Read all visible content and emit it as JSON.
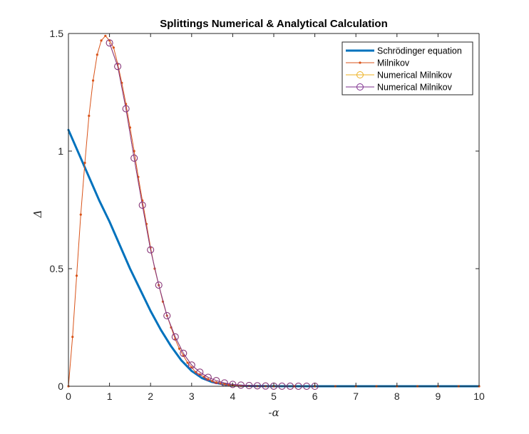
{
  "chart_data": {
    "type": "line",
    "title": "Splittings Numerical & Analytical Calculation",
    "xlabel": "-α",
    "ylabel": "Δ",
    "xlim": [
      0,
      10
    ],
    "ylim": [
      0,
      1.5
    ],
    "xticks": [
      0,
      1,
      2,
      3,
      4,
      5,
      6,
      7,
      8,
      9,
      10
    ],
    "yticks": [
      0,
      0.5,
      1,
      1.5
    ],
    "ytick_labels": [
      "0",
      "0.5",
      "1",
      "1.5"
    ],
    "grid": false,
    "legend_position": "top-right",
    "series": [
      {
        "name": "Schrödinger equation",
        "color": "#0072BD",
        "marker": "none",
        "x": [
          0,
          0.25,
          0.5,
          0.75,
          1,
          1.25,
          1.5,
          1.75,
          2,
          2.25,
          2.5,
          2.75,
          3,
          3.25,
          3.5,
          3.75,
          4,
          4.25,
          4.5,
          5,
          6,
          7,
          8,
          9,
          10
        ],
        "y": [
          1.09,
          0.99,
          0.89,
          0.79,
          0.7,
          0.6,
          0.5,
          0.41,
          0.32,
          0.24,
          0.17,
          0.11,
          0.065,
          0.035,
          0.018,
          0.009,
          0.004,
          0.002,
          0.001,
          0.0003,
          0,
          0,
          0,
          0,
          0
        ]
      },
      {
        "name": "Milnikov",
        "color": "#D95319",
        "marker": "dot",
        "x": [
          0,
          0.1,
          0.2,
          0.3,
          0.4,
          0.5,
          0.6,
          0.7,
          0.8,
          0.9,
          1.0,
          1.1,
          1.2,
          1.3,
          1.4,
          1.5,
          1.6,
          1.7,
          1.8,
          1.9,
          2.0,
          2.1,
          2.2,
          2.3,
          2.4,
          2.5,
          2.6,
          2.7,
          2.8,
          2.9,
          3.0,
          3.1,
          3.2,
          3.3,
          3.4,
          3.5,
          3.6,
          3.7,
          3.8,
          3.9,
          4.0,
          4.2,
          4.4,
          4.6,
          4.8,
          5.0,
          5.5,
          6.0,
          6.5,
          7.0,
          7.5,
          8.0,
          8.5,
          9.0,
          9.5,
          10.0
        ],
        "y": [
          0,
          0.21,
          0.47,
          0.73,
          0.95,
          1.15,
          1.3,
          1.41,
          1.47,
          1.49,
          1.47,
          1.44,
          1.37,
          1.29,
          1.2,
          1.1,
          1.0,
          0.89,
          0.79,
          0.69,
          0.59,
          0.5,
          0.43,
          0.36,
          0.3,
          0.25,
          0.2,
          0.16,
          0.13,
          0.1,
          0.08,
          0.06,
          0.05,
          0.04,
          0.03,
          0.022,
          0.016,
          0.012,
          0.009,
          0.006,
          0.004,
          0.002,
          0.001,
          0.0005,
          0.0002,
          0.0001,
          0,
          0,
          0,
          0,
          0,
          0,
          0,
          0,
          0,
          0
        ]
      },
      {
        "name": "Numerical Milnikov",
        "color": "#EDB120",
        "marker": "circle",
        "x": [
          1.0,
          1.2,
          1.4,
          1.6,
          1.8,
          2.0,
          2.2,
          2.4,
          2.6,
          2.8,
          3.0,
          3.2,
          3.4,
          3.6,
          3.8,
          4.0,
          4.2,
          4.4,
          4.6,
          4.8,
          5.0,
          5.2,
          5.4,
          5.6,
          5.8,
          6.0
        ],
        "y": [
          1.46,
          1.36,
          1.18,
          0.97,
          0.77,
          0.58,
          0.43,
          0.3,
          0.21,
          0.14,
          0.09,
          0.06,
          0.038,
          0.024,
          0.014,
          0.008,
          0.005,
          0.003,
          0.002,
          0.001,
          0.0005,
          0.0003,
          0.0002,
          0.0001,
          5e-05,
          0
        ]
      },
      {
        "name": "Numerical Milnikov",
        "color": "#7E2F8E",
        "marker": "circle",
        "x": [
          1.0,
          1.2,
          1.4,
          1.6,
          1.8,
          2.0,
          2.2,
          2.4,
          2.6,
          2.8,
          3.0,
          3.2,
          3.4,
          3.6,
          3.8,
          4.0,
          4.2,
          4.4,
          4.6,
          4.8,
          5.0,
          5.2,
          5.4,
          5.6,
          5.8,
          6.0
        ],
        "y": [
          1.46,
          1.36,
          1.18,
          0.97,
          0.77,
          0.58,
          0.43,
          0.3,
          0.21,
          0.14,
          0.09,
          0.06,
          0.038,
          0.024,
          0.014,
          0.008,
          0.005,
          0.003,
          0.002,
          0.001,
          0.0005,
          0.0003,
          0.0002,
          0.0001,
          5e-05,
          0
        ]
      }
    ]
  }
}
